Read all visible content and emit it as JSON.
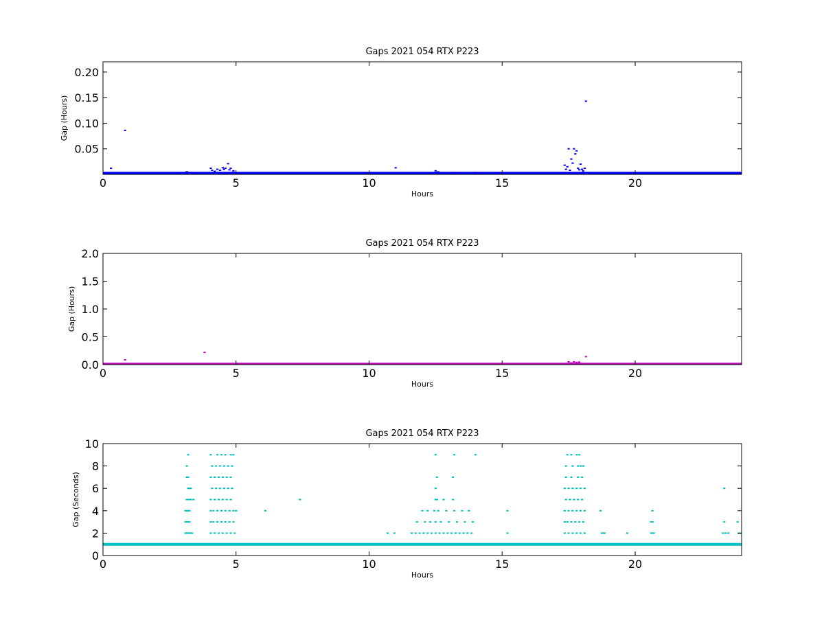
{
  "figure": {
    "background": "#ffffff"
  },
  "chart_data": [
    {
      "type": "scatter",
      "title": "Gaps 2021 054 RTX  P223",
      "xlabel": "Hours",
      "ylabel": "Gap (Hours)",
      "xlim": [
        0,
        24
      ],
      "ylim": [
        0,
        0.22
      ],
      "xticks": [
        0,
        5,
        10,
        15,
        20
      ],
      "yticks": [
        0.05,
        0.1,
        0.15,
        0.2
      ],
      "ytick_labels": [
        "0.05",
        "0.10",
        "0.15",
        "0.20"
      ],
      "grid": false,
      "color": "#0000ff",
      "baseline": {
        "value": 0.0025,
        "x_start": 0,
        "x_end": 24
      },
      "series": [
        {
          "x": [
            0.3,
            0.83,
            3.15,
            3.2,
            4.05,
            4.1,
            4.2,
            4.3,
            4.4,
            4.5,
            4.55,
            4.6,
            4.7,
            4.75,
            4.8,
            4.9,
            11.0,
            12.5,
            12.6,
            13.2,
            14.0,
            17.35,
            17.4,
            17.45,
            17.5,
            17.55,
            17.6,
            17.65,
            17.7,
            17.75,
            17.8,
            17.85,
            17.9,
            17.95,
            18.0,
            18.05,
            18.1,
            18.15
          ],
          "y": [
            0.012,
            0.086,
            0.005,
            0.004,
            0.012,
            0.008,
            0.006,
            0.01,
            0.008,
            0.013,
            0.01,
            0.012,
            0.021,
            0.009,
            0.012,
            0.007,
            0.013,
            0.007,
            0.005,
            0.004,
            0.004,
            0.018,
            0.01,
            0.015,
            0.05,
            0.008,
            0.03,
            0.022,
            0.05,
            0.04,
            0.046,
            0.012,
            0.009,
            0.02,
            0.01,
            0.007,
            0.012,
            0.143
          ]
        }
      ]
    },
    {
      "type": "scatter",
      "title": "Gaps 2021 054 RTX  P223",
      "xlabel": "Hours",
      "ylabel": "Gap (Hours)",
      "xlim": [
        0,
        24
      ],
      "ylim": [
        0,
        2.0
      ],
      "xticks": [
        0,
        5,
        10,
        15,
        20
      ],
      "yticks": [
        0.0,
        0.5,
        1.0,
        1.5,
        2.0
      ],
      "ytick_labels": [
        "0.0",
        "0.5",
        "1.0",
        "1.5",
        "2.0"
      ],
      "grid": false,
      "color": "#bf00bf",
      "baseline": {
        "value": 0.01,
        "x_start": 0,
        "x_end": 24
      },
      "series": [
        {
          "x": [
            0.83,
            3.82,
            17.5,
            17.6,
            17.7,
            17.8,
            17.9,
            18.15
          ],
          "y": [
            0.086,
            0.22,
            0.05,
            0.03,
            0.05,
            0.04,
            0.046,
            0.143
          ]
        }
      ]
    },
    {
      "type": "scatter",
      "title": "Gaps 2021 054 RTX  P223",
      "xlabel": "Hours",
      "ylabel": "Gap (Seconds)",
      "xlim": [
        0,
        24
      ],
      "ylim": [
        0,
        10
      ],
      "xticks": [
        0,
        5,
        10,
        15,
        20
      ],
      "yticks": [
        0,
        2,
        4,
        6,
        8,
        10
      ],
      "ytick_labels": [
        "0",
        "2",
        "4",
        "6",
        "8",
        "10"
      ],
      "grid": false,
      "color": "#00bfbf",
      "baseline": {
        "value": 1,
        "x_start": 0,
        "x_end": 24
      },
      "series": [
        {
          "x": [
            3.1,
            3.15,
            3.2,
            3.25,
            3.1,
            3.15,
            3.2,
            3.25,
            3.3,
            3.35,
            3.1,
            3.15,
            3.2,
            3.25,
            3.15,
            3.2,
            3.25,
            3.3,
            3.4,
            3.2,
            3.25,
            3.3,
            3.15,
            3.2,
            3.15,
            3.2,
            4.05,
            4.2,
            4.35,
            4.5,
            4.65,
            4.8,
            4.95,
            4.05,
            4.15,
            4.3,
            4.45,
            4.6,
            4.75,
            4.9,
            4.05,
            4.15,
            4.3,
            4.45,
            4.6,
            4.75,
            4.9,
            5.0,
            4.05,
            4.2,
            4.35,
            4.5,
            4.65,
            4.8,
            4.1,
            4.25,
            4.4,
            4.55,
            4.7,
            4.85,
            4.05,
            4.2,
            4.35,
            4.5,
            4.65,
            4.8,
            4.1,
            4.25,
            4.4,
            4.55,
            4.7,
            4.85,
            4.05,
            4.3,
            4.45,
            4.6,
            4.8,
            4.9,
            6.1,
            7.4,
            10.7,
            10.95,
            11.6,
            11.75,
            11.9,
            12.05,
            12.2,
            12.35,
            12.5,
            12.65,
            12.8,
            12.95,
            13.1,
            13.25,
            13.4,
            13.55,
            13.7,
            13.85,
            11.8,
            12.1,
            12.3,
            12.5,
            12.7,
            13.0,
            13.3,
            13.6,
            13.9,
            12.0,
            12.2,
            12.45,
            12.6,
            12.9,
            13.2,
            13.5,
            13.75,
            12.5,
            12.55,
            12.8,
            13.15,
            12.5,
            12.55,
            13.15,
            12.5,
            13.2,
            14.0,
            15.2,
            15.2,
            17.35,
            17.5,
            17.65,
            17.8,
            17.95,
            18.1,
            17.35,
            17.45,
            17.6,
            17.75,
            17.9,
            18.05,
            17.35,
            17.5,
            17.65,
            17.8,
            17.95,
            18.1,
            17.4,
            17.55,
            17.7,
            17.85,
            18.0,
            17.35,
            17.5,
            17.65,
            17.8,
            17.95,
            18.1,
            17.4,
            17.6,
            17.85,
            18.0,
            17.4,
            17.65,
            17.85,
            17.95,
            18.05,
            17.45,
            17.6,
            17.8,
            17.9,
            18.75,
            18.8,
            18.85,
            18.7,
            19.7,
            20.6,
            20.65,
            20.7,
            20.6,
            20.65,
            20.65,
            23.3,
            23.4,
            23.5,
            23.35,
            23.9,
            24.0,
            23.35,
            23.85
          ],
          "y": [
            2,
            2,
            2,
            2,
            3,
            3,
            3,
            3,
            2,
            2,
            4,
            4,
            4,
            4,
            5,
            5,
            5,
            5,
            5,
            6,
            6,
            6,
            7,
            7,
            8,
            9,
            2,
            2,
            2,
            2,
            2,
            2,
            2,
            3,
            3,
            3,
            3,
            3,
            3,
            3,
            4,
            4,
            4,
            4,
            4,
            4,
            4,
            4,
            5,
            5,
            5,
            5,
            5,
            5,
            6,
            6,
            6,
            6,
            6,
            6,
            7,
            7,
            7,
            7,
            7,
            7,
            8,
            8,
            8,
            8,
            8,
            8,
            9,
            9,
            9,
            9,
            9,
            9,
            4,
            5,
            2,
            2,
            2,
            2,
            2,
            2,
            2,
            2,
            2,
            2,
            2,
            2,
            2,
            2,
            2,
            2,
            2,
            2,
            3,
            3,
            3,
            3,
            3,
            3,
            3,
            3,
            3,
            4,
            4,
            4,
            4,
            4,
            4,
            4,
            4,
            5,
            5,
            5,
            5,
            6,
            7,
            7,
            9,
            9,
            9,
            4,
            2,
            2,
            2,
            2,
            2,
            2,
            2,
            3,
            3,
            3,
            3,
            3,
            3,
            4,
            4,
            4,
            4,
            4,
            4,
            5,
            5,
            5,
            5,
            5,
            6,
            6,
            6,
            6,
            6,
            6,
            7,
            7,
            7,
            7,
            8,
            8,
            8,
            8,
            8,
            9,
            9,
            9,
            9,
            2,
            2,
            2,
            4,
            2,
            2,
            2,
            2,
            3,
            3,
            4,
            2,
            2,
            2,
            3,
            2,
            2,
            6,
            3
          ]
        }
      ]
    }
  ]
}
